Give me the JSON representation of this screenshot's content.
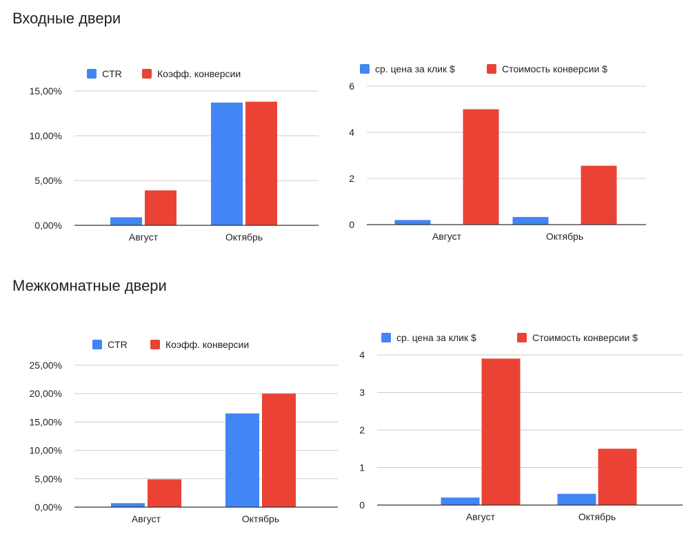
{
  "sections": [
    {
      "title": "Входные двери"
    },
    {
      "title": "Межкомнатные двери"
    }
  ],
  "colors": {
    "series1": "#4285f4",
    "series2": "#ea4335",
    "grid": "#cccccc",
    "axis": "#333333"
  },
  "chart_data": [
    {
      "type": "bar",
      "categories": [
        "Август",
        "Октябрь"
      ],
      "series": [
        {
          "name": "CTR",
          "values": [
            0.009,
            0.137
          ]
        },
        {
          "name": "Коэфф. конверсии",
          "values": [
            0.039,
            0.138
          ]
        }
      ],
      "ylim": [
        0,
        0.15
      ],
      "yticks": [
        0,
        0.05,
        0.1,
        0.15
      ],
      "ytick_labels": [
        "0,00%",
        "5,00%",
        "10,00%",
        "15,00%"
      ],
      "legend_position": "top",
      "grid": true
    },
    {
      "type": "bar",
      "categories": [
        "Август",
        "Октябрь"
      ],
      "series": [
        {
          "name": "ср. цена за клик $",
          "values": [
            0.2,
            0.33
          ]
        },
        {
          "name": "Стоимость конверсии $",
          "values": [
            5.0,
            2.55
          ]
        }
      ],
      "ylim": [
        0,
        6
      ],
      "yticks": [
        0,
        2,
        4,
        6
      ],
      "ytick_labels": [
        "0",
        "2",
        "4",
        "6"
      ],
      "legend_position": "top",
      "grid": true
    },
    {
      "type": "bar",
      "categories": [
        "Август",
        "Октябрь"
      ],
      "series": [
        {
          "name": "CTR",
          "values": [
            0.007,
            0.165
          ]
        },
        {
          "name": "Коэфф. конверсии",
          "values": [
            0.049,
            0.2
          ]
        }
      ],
      "ylim": [
        0,
        0.25
      ],
      "yticks": [
        0,
        0.05,
        0.1,
        0.15,
        0.2,
        0.25
      ],
      "ytick_labels": [
        "0,00%",
        "5,00%",
        "10,00%",
        "15,00%",
        "20,00%",
        "25,00%"
      ],
      "legend_position": "top",
      "grid": true
    },
    {
      "type": "bar",
      "categories": [
        "Август",
        "Октябрь"
      ],
      "series": [
        {
          "name": "ср. цена за клик $",
          "values": [
            0.2,
            0.3
          ]
        },
        {
          "name": "Стоимость конверсии $",
          "values": [
            3.9,
            1.5
          ]
        }
      ],
      "ylim": [
        0,
        4
      ],
      "yticks": [
        0,
        1,
        2,
        3,
        4
      ],
      "ytick_labels": [
        "0",
        "1",
        "2",
        "3",
        "4"
      ],
      "legend_position": "top",
      "grid": true
    }
  ]
}
